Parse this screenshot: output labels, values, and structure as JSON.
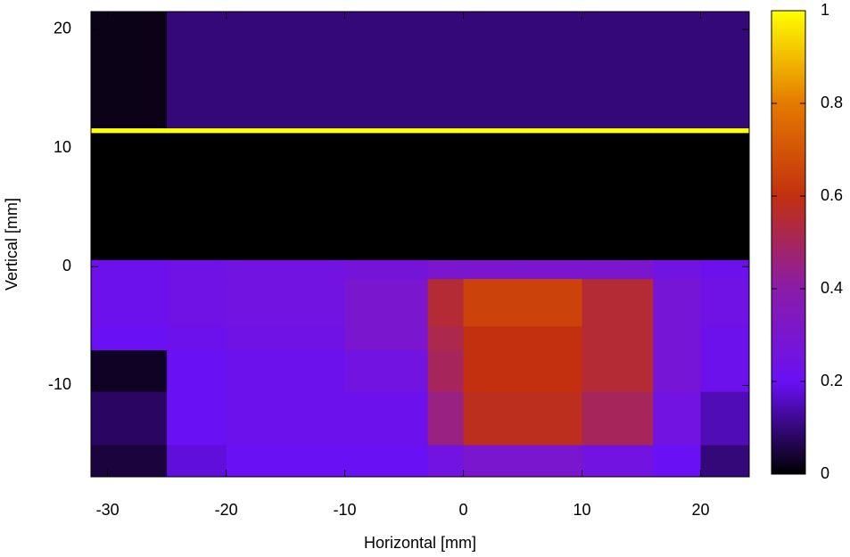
{
  "chart_data": {
    "type": "heatmap",
    "xlabel": "Horizontal [mm]",
    "ylabel": "Vertical [mm]",
    "xlim": [
      -31.4,
      24.1
    ],
    "ylim": [
      -17.7,
      21.5
    ],
    "xticks": [
      -30,
      -20,
      -10,
      0,
      10,
      20
    ],
    "yticks": [
      -10,
      0,
      10,
      20
    ],
    "clim": [
      0,
      1
    ],
    "cticks": [
      0,
      0.2,
      0.4,
      0.6,
      0.8,
      1
    ],
    "colormap": [
      "#000000",
      "#6a10f4",
      "#8a1ca8",
      "#c2300f",
      "#e47a00",
      "#ffff00"
    ],
    "x_edges": [
      -31.4,
      -25,
      -20,
      -10,
      -3,
      0,
      5,
      10,
      16,
      20,
      24.1
    ],
    "y_edges": [
      -17.7,
      -15,
      -10.5,
      -7,
      -5,
      -1,
      0.6,
      11.3,
      11.7,
      21.5
    ],
    "z": [
      [
        0.05,
        0.18,
        0.2,
        0.2,
        0.25,
        0.3,
        0.3,
        0.25,
        0.2,
        0.1
      ],
      [
        0.08,
        0.2,
        0.22,
        0.22,
        0.45,
        0.58,
        0.58,
        0.5,
        0.25,
        0.15
      ],
      [
        0.03,
        0.2,
        0.22,
        0.25,
        0.5,
        0.6,
        0.6,
        0.55,
        0.28,
        0.22
      ],
      [
        0.2,
        0.22,
        0.24,
        0.3,
        0.52,
        0.6,
        0.6,
        0.55,
        0.28,
        0.22
      ],
      [
        0.22,
        0.24,
        0.25,
        0.3,
        0.55,
        0.65,
        0.65,
        0.55,
        0.28,
        0.24
      ],
      [
        0.22,
        0.24,
        0.25,
        0.27,
        0.3,
        0.3,
        0.3,
        0.3,
        0.25,
        0.22
      ],
      [
        0,
        0,
        0,
        0,
        0,
        0,
        0,
        0,
        0,
        0
      ],
      [
        1,
        1,
        1,
        1,
        1,
        1,
        1,
        1,
        1,
        1
      ],
      [
        0.02,
        0.1,
        0.1,
        0.1,
        0.1,
        0.1,
        0.1,
        0.1,
        0.1,
        0.1
      ]
    ]
  }
}
